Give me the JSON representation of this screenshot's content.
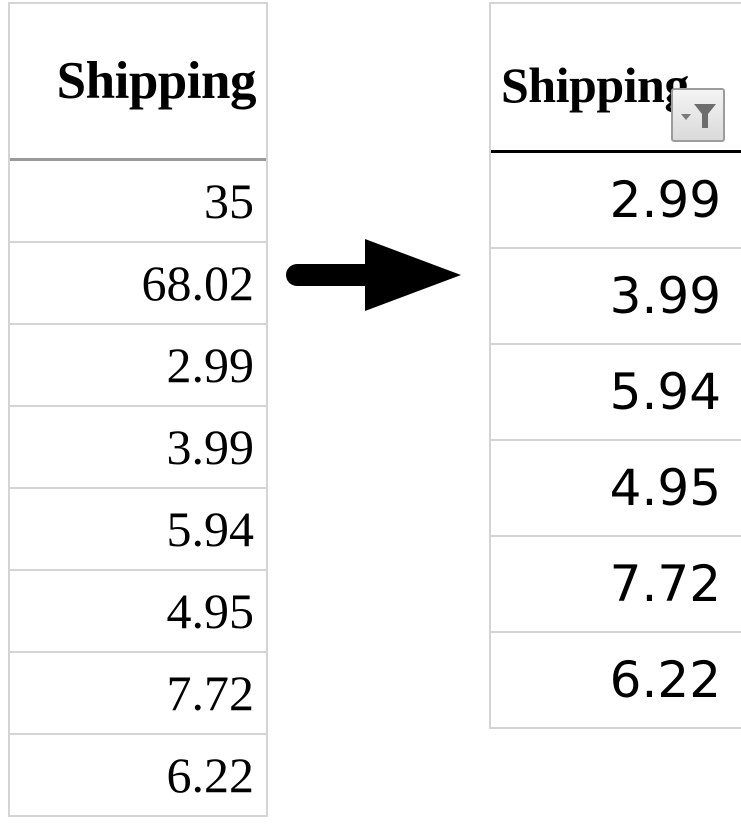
{
  "before_table": {
    "header": "Shipping",
    "values": [
      "35",
      "68.02",
      "2.99",
      "3.99",
      "5.94",
      "4.95",
      "7.72",
      "6.22"
    ]
  },
  "after_table": {
    "header": "Shipping",
    "values": [
      "2.99",
      "3.99",
      "5.94",
      "4.95",
      "7.72",
      "6.22"
    ],
    "filter_icon": "filter-dropdown-icon"
  },
  "arrow_icon": "right-arrow-icon",
  "colors": {
    "grid_line": "#d4d4d4",
    "header_border_left": "#9a9a9a",
    "header_border_right": "#000000",
    "filter_button_border": "#9c9c9c",
    "text": "#000000"
  }
}
